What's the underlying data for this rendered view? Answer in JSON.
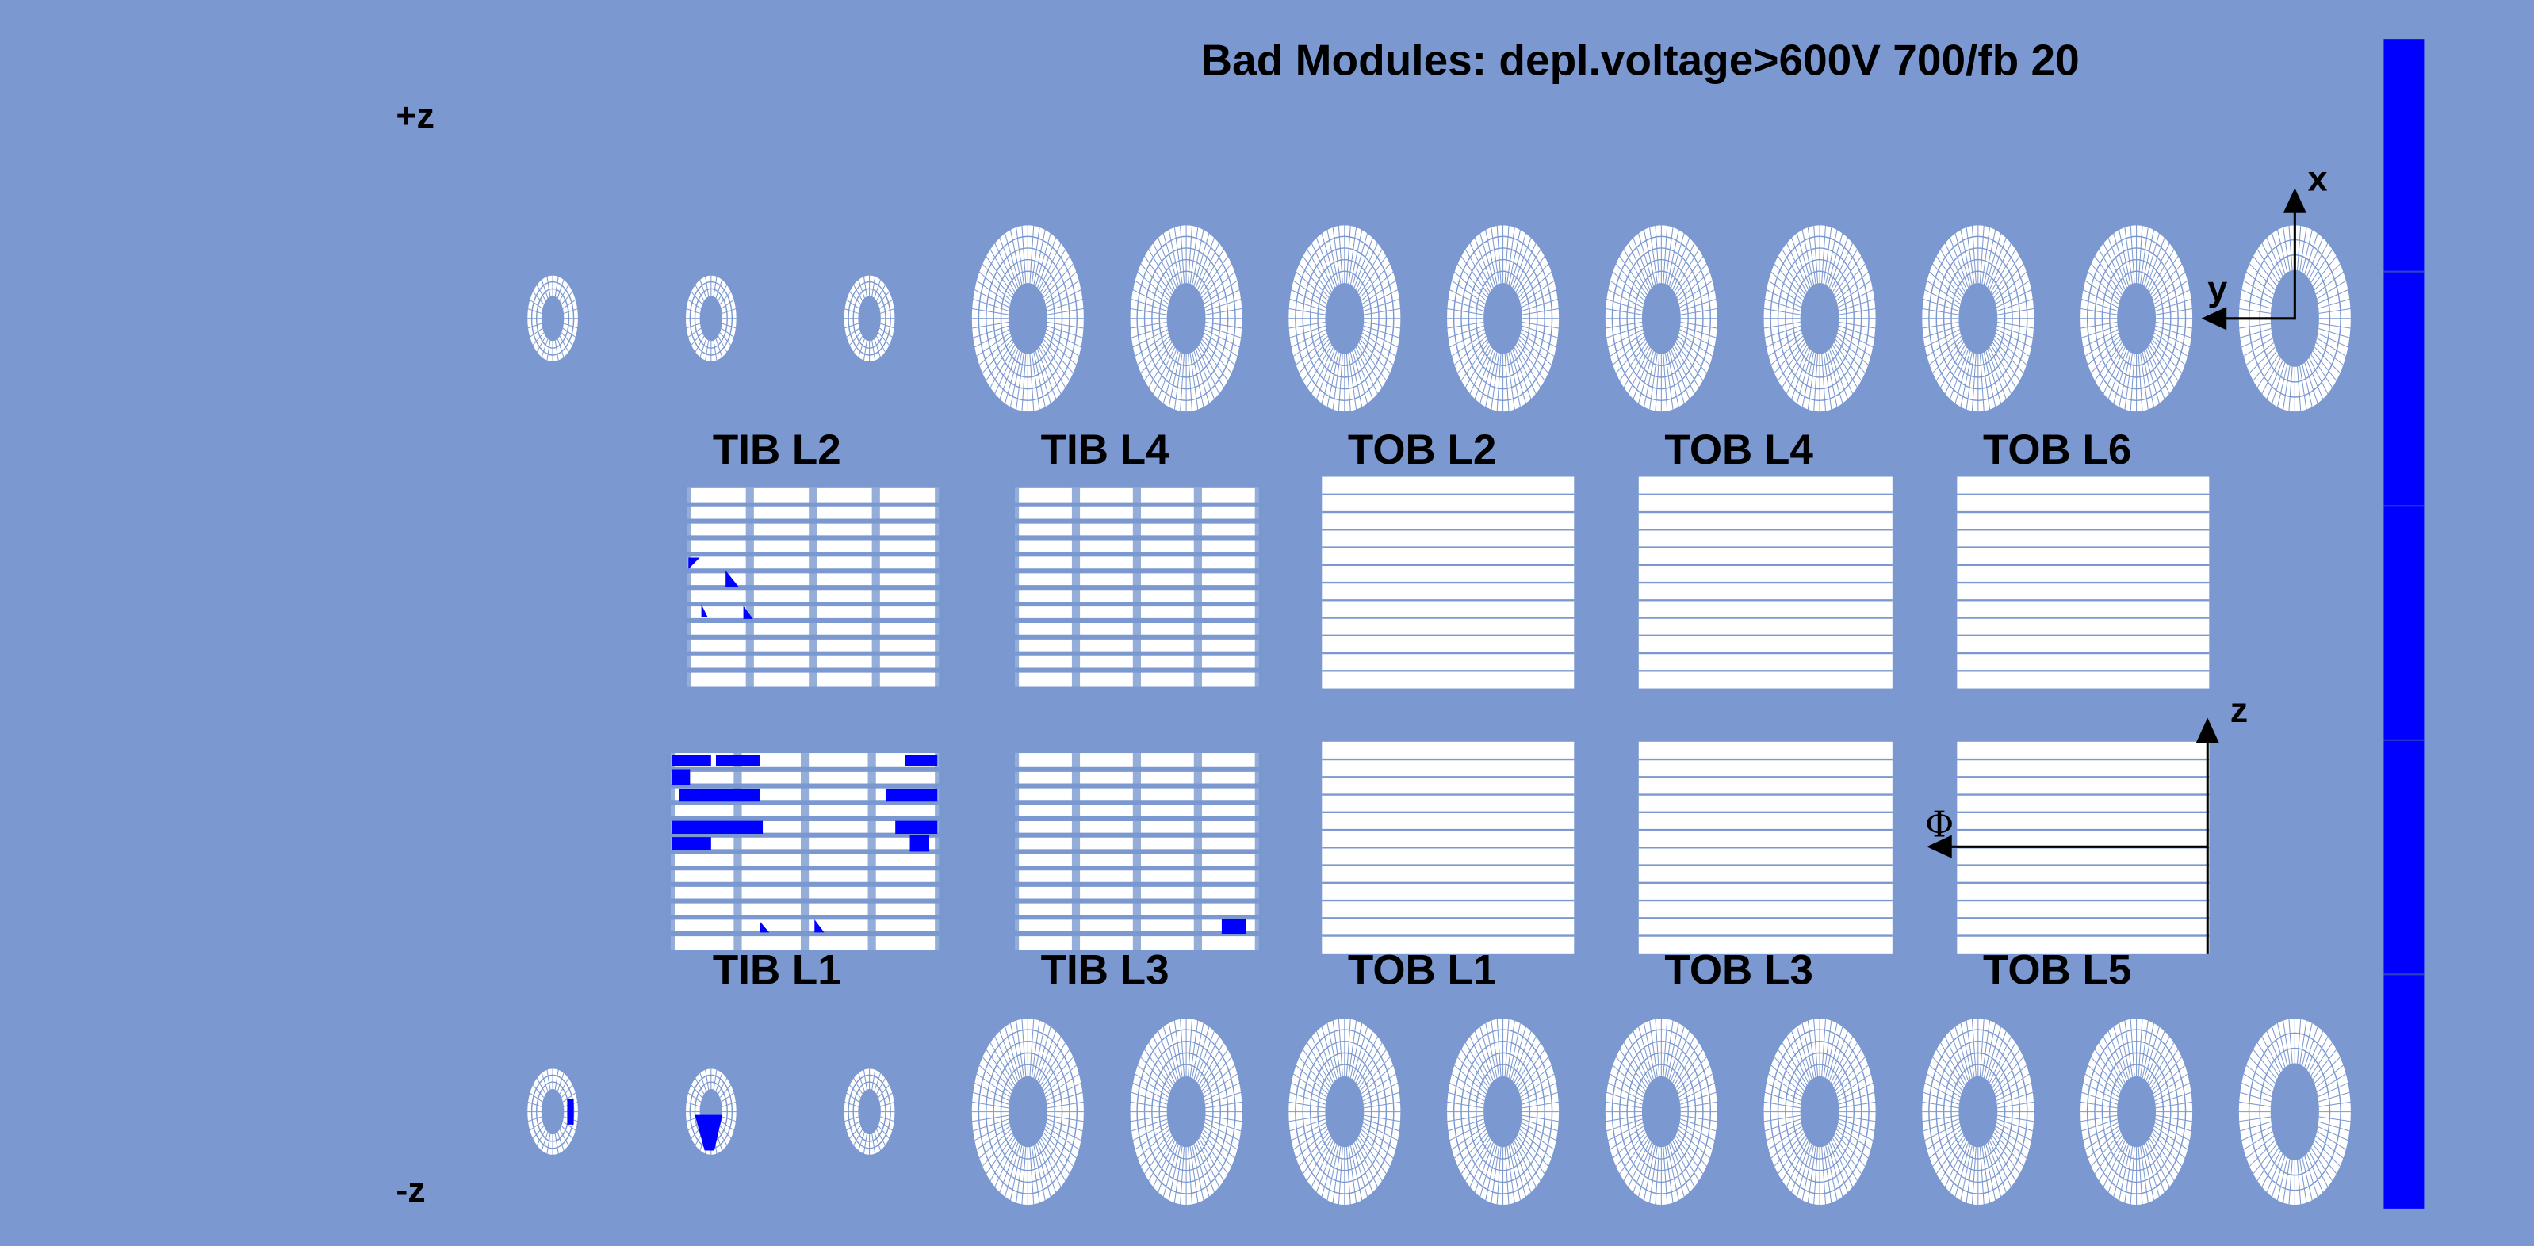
{
  "title": "Bad Modules: depl.voltage>600V 700/fb 20",
  "z_labels": {
    "plus": "+z",
    "minus": "-z"
  },
  "layers": {
    "top": [
      "TIB L2",
      "TIB L4",
      "TOB L2",
      "TOB L4",
      "TOB L6"
    ],
    "bottom": [
      "TIB L1",
      "TIB L3",
      "TOB L1",
      "TOB L3",
      "TOB L5"
    ]
  },
  "axes": {
    "x": "x",
    "y": "y",
    "z": "z",
    "phi": "Φ"
  }
}
